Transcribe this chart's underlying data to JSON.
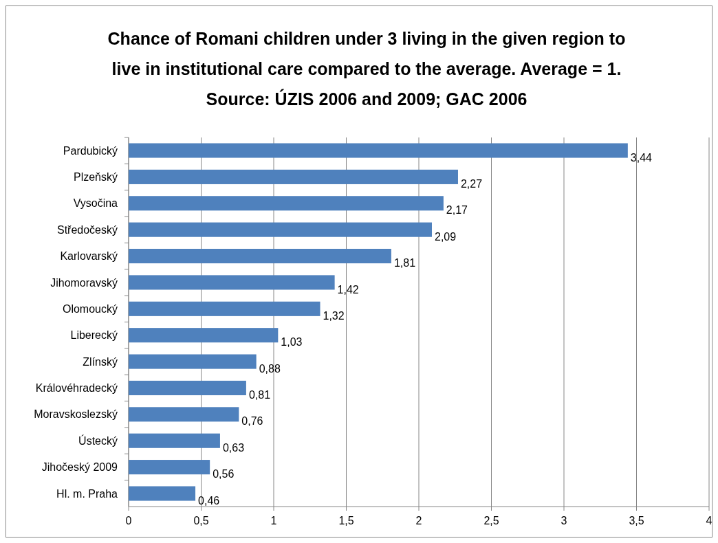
{
  "chart_data": {
    "type": "bar",
    "orientation": "horizontal",
    "title": "Chance of Romani children under 3 living in the given region to\nlive in institutional care compared to the average. Average = 1.\nSource: ÚZIS 2006 and 2009; GAC 2006",
    "categories": [
      "Pardubický",
      "Plzeňský",
      "Vysočina",
      "Středočeský",
      "Karlovarský",
      "Jihomoravský",
      "Olomoucký",
      "Liberecký",
      "Zlínský",
      "Královéhradecký",
      "Moravskoslezský",
      "Ústecký",
      "Jihočeský 2009",
      "Hl. m. Praha"
    ],
    "values": [
      3.44,
      2.27,
      2.17,
      2.09,
      1.81,
      1.42,
      1.32,
      1.03,
      0.88,
      0.81,
      0.76,
      0.63,
      0.56,
      0.46
    ],
    "value_labels": [
      "3,44",
      "2,27",
      "2,17",
      "2,09",
      "1,81",
      "1,42",
      "1,32",
      "1,03",
      "0,88",
      "0,81",
      "0,76",
      "0,63",
      "0,56",
      "0,46"
    ],
    "color": "#4f81bd",
    "xlim": [
      0,
      4
    ],
    "xticks": [
      0,
      {
        "value": 0.5,
        "label": "0,5"
      },
      1,
      {
        "value": 1.5,
        "label": "1,5"
      },
      2,
      {
        "value": 2.5,
        "label": "2,5"
      },
      3,
      {
        "value": 3.5,
        "label": "3,5"
      },
      4
    ],
    "grid": "x"
  }
}
